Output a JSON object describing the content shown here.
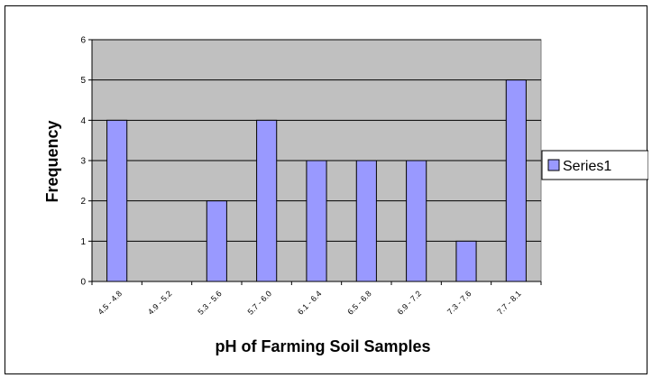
{
  "chart_data": {
    "type": "bar",
    "categories": [
      "4.5 - 4.8",
      "4.9 - 5.2",
      "5.3 - 5.6",
      "5.7 - 6.0",
      "6.1 - 6.4",
      "6.5 - 6.8",
      "6.9 - 7.2",
      "7.3 - 7.6",
      "7.7 - 8.1"
    ],
    "series": [
      {
        "name": "Series1",
        "values": [
          4,
          0,
          2,
          4,
          3,
          3,
          3,
          1,
          5
        ],
        "color": "#9999ff"
      }
    ],
    "xlabel": "pH of Farming Soil Samples",
    "ylabel": "Frequency",
    "ylim": [
      0,
      6
    ],
    "yticks": [
      "0",
      "1",
      "2",
      "3",
      "4",
      "5",
      "6"
    ],
    "grid": true,
    "plot_background": "#c0c0c0",
    "legend_position": "right"
  }
}
